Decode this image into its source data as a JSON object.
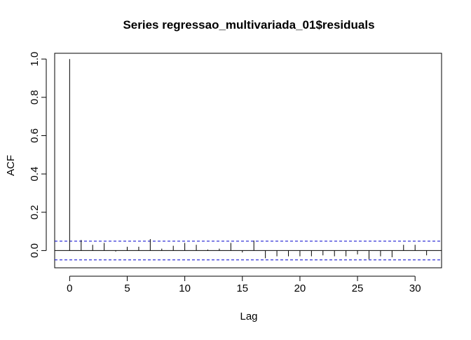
{
  "chart_data": {
    "type": "bar",
    "title": "Series  regressao_multivariada_01$residuals",
    "xlabel": "Lag",
    "ylabel": "ACF",
    "xlim": [
      -1.3,
      32.3
    ],
    "ylim": [
      -0.09,
      1.03
    ],
    "x_ticks": [
      0,
      5,
      10,
      15,
      20,
      25,
      30
    ],
    "x_tick_labels": [
      "0",
      "5",
      "10",
      "15",
      "20",
      "25",
      "30"
    ],
    "y_ticks": [
      0.0,
      0.2,
      0.4,
      0.6,
      0.8,
      1.0
    ],
    "y_tick_labels": [
      "0.0",
      "0.2",
      "0.4",
      "0.6",
      "0.8",
      "1.0"
    ],
    "lags": [
      0,
      1,
      2,
      3,
      4,
      5,
      6,
      7,
      8,
      9,
      10,
      11,
      12,
      13,
      14,
      15,
      16,
      17,
      18,
      19,
      20,
      21,
      22,
      23,
      24,
      25,
      26,
      27,
      28,
      29,
      30,
      31
    ],
    "acf": [
      1.0,
      0.055,
      0.03,
      0.04,
      -0.005,
      0.02,
      0.02,
      0.06,
      0.01,
      0.025,
      0.04,
      0.03,
      0.005,
      0.01,
      0.04,
      -0.01,
      0.052,
      -0.04,
      -0.03,
      -0.03,
      -0.03,
      -0.03,
      -0.025,
      -0.03,
      -0.03,
      -0.02,
      -0.045,
      -0.03,
      -0.035,
      0.03,
      0.03,
      -0.025
    ],
    "confidence_bound": 0.049,
    "colors": {
      "spikes": "#000000",
      "confidence": "#0000cd",
      "axes": "#000000"
    }
  }
}
